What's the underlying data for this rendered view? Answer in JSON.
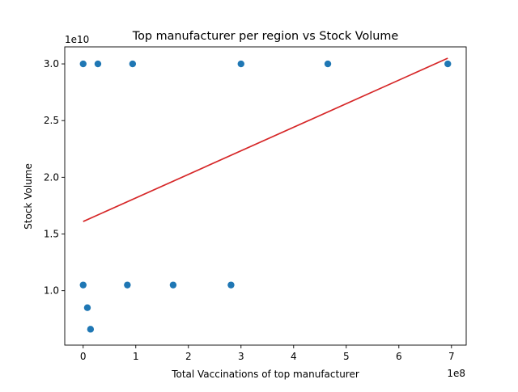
{
  "chart_data": {
    "type": "scatter",
    "title": "Top manufacturer per region vs Stock Volume",
    "xlabel": "Total Vaccinations of top manufacturer",
    "ylabel": "Stock Volume",
    "x_offset_label": "1e8",
    "y_offset_label": "1e10",
    "xlim": [
      -35000000.0,
      728000000.0
    ],
    "ylim": [
      5200000000.0,
      31500000000.0
    ],
    "x_ticks": [
      0,
      100000000.0,
      200000000.0,
      300000000.0,
      400000000.0,
      500000000.0,
      600000000.0,
      700000000.0
    ],
    "x_tick_labels": [
      "0",
      "1",
      "2",
      "3",
      "4",
      "5",
      "6",
      "7"
    ],
    "y_ticks": [
      10000000000.0,
      15000000000.0,
      20000000000.0,
      25000000000.0,
      30000000000.0
    ],
    "y_tick_labels": [
      "1.0",
      "1.5",
      "2.0",
      "2.5",
      "3.0"
    ],
    "grid": false,
    "marker_color": "#1f77b4",
    "trend_color": "#d62728",
    "series": [
      {
        "type": "scatter",
        "points": [
          {
            "x": 0.0,
            "y": 30000000000.0
          },
          {
            "x": 28000000.0,
            "y": 30000000000.0
          },
          {
            "x": 94000000.0,
            "y": 30000000000.0
          },
          {
            "x": 300000000.0,
            "y": 30000000000.0
          },
          {
            "x": 465000000.0,
            "y": 30000000000.0
          },
          {
            "x": 693000000.0,
            "y": 30000000000.0
          },
          {
            "x": 0.0,
            "y": 10500000000.0
          },
          {
            "x": 84000000.0,
            "y": 10500000000.0
          },
          {
            "x": 171000000.0,
            "y": 10500000000.0
          },
          {
            "x": 281000000.0,
            "y": 10500000000.0
          },
          {
            "x": 8000000.0,
            "y": 8500000000.0
          },
          {
            "x": 14000000.0,
            "y": 6600000000.0
          }
        ]
      },
      {
        "type": "line",
        "points": [
          {
            "x": 0.0,
            "y": 16100000000.0
          },
          {
            "x": 693000000.0,
            "y": 30500000000.0
          }
        ]
      }
    ]
  }
}
